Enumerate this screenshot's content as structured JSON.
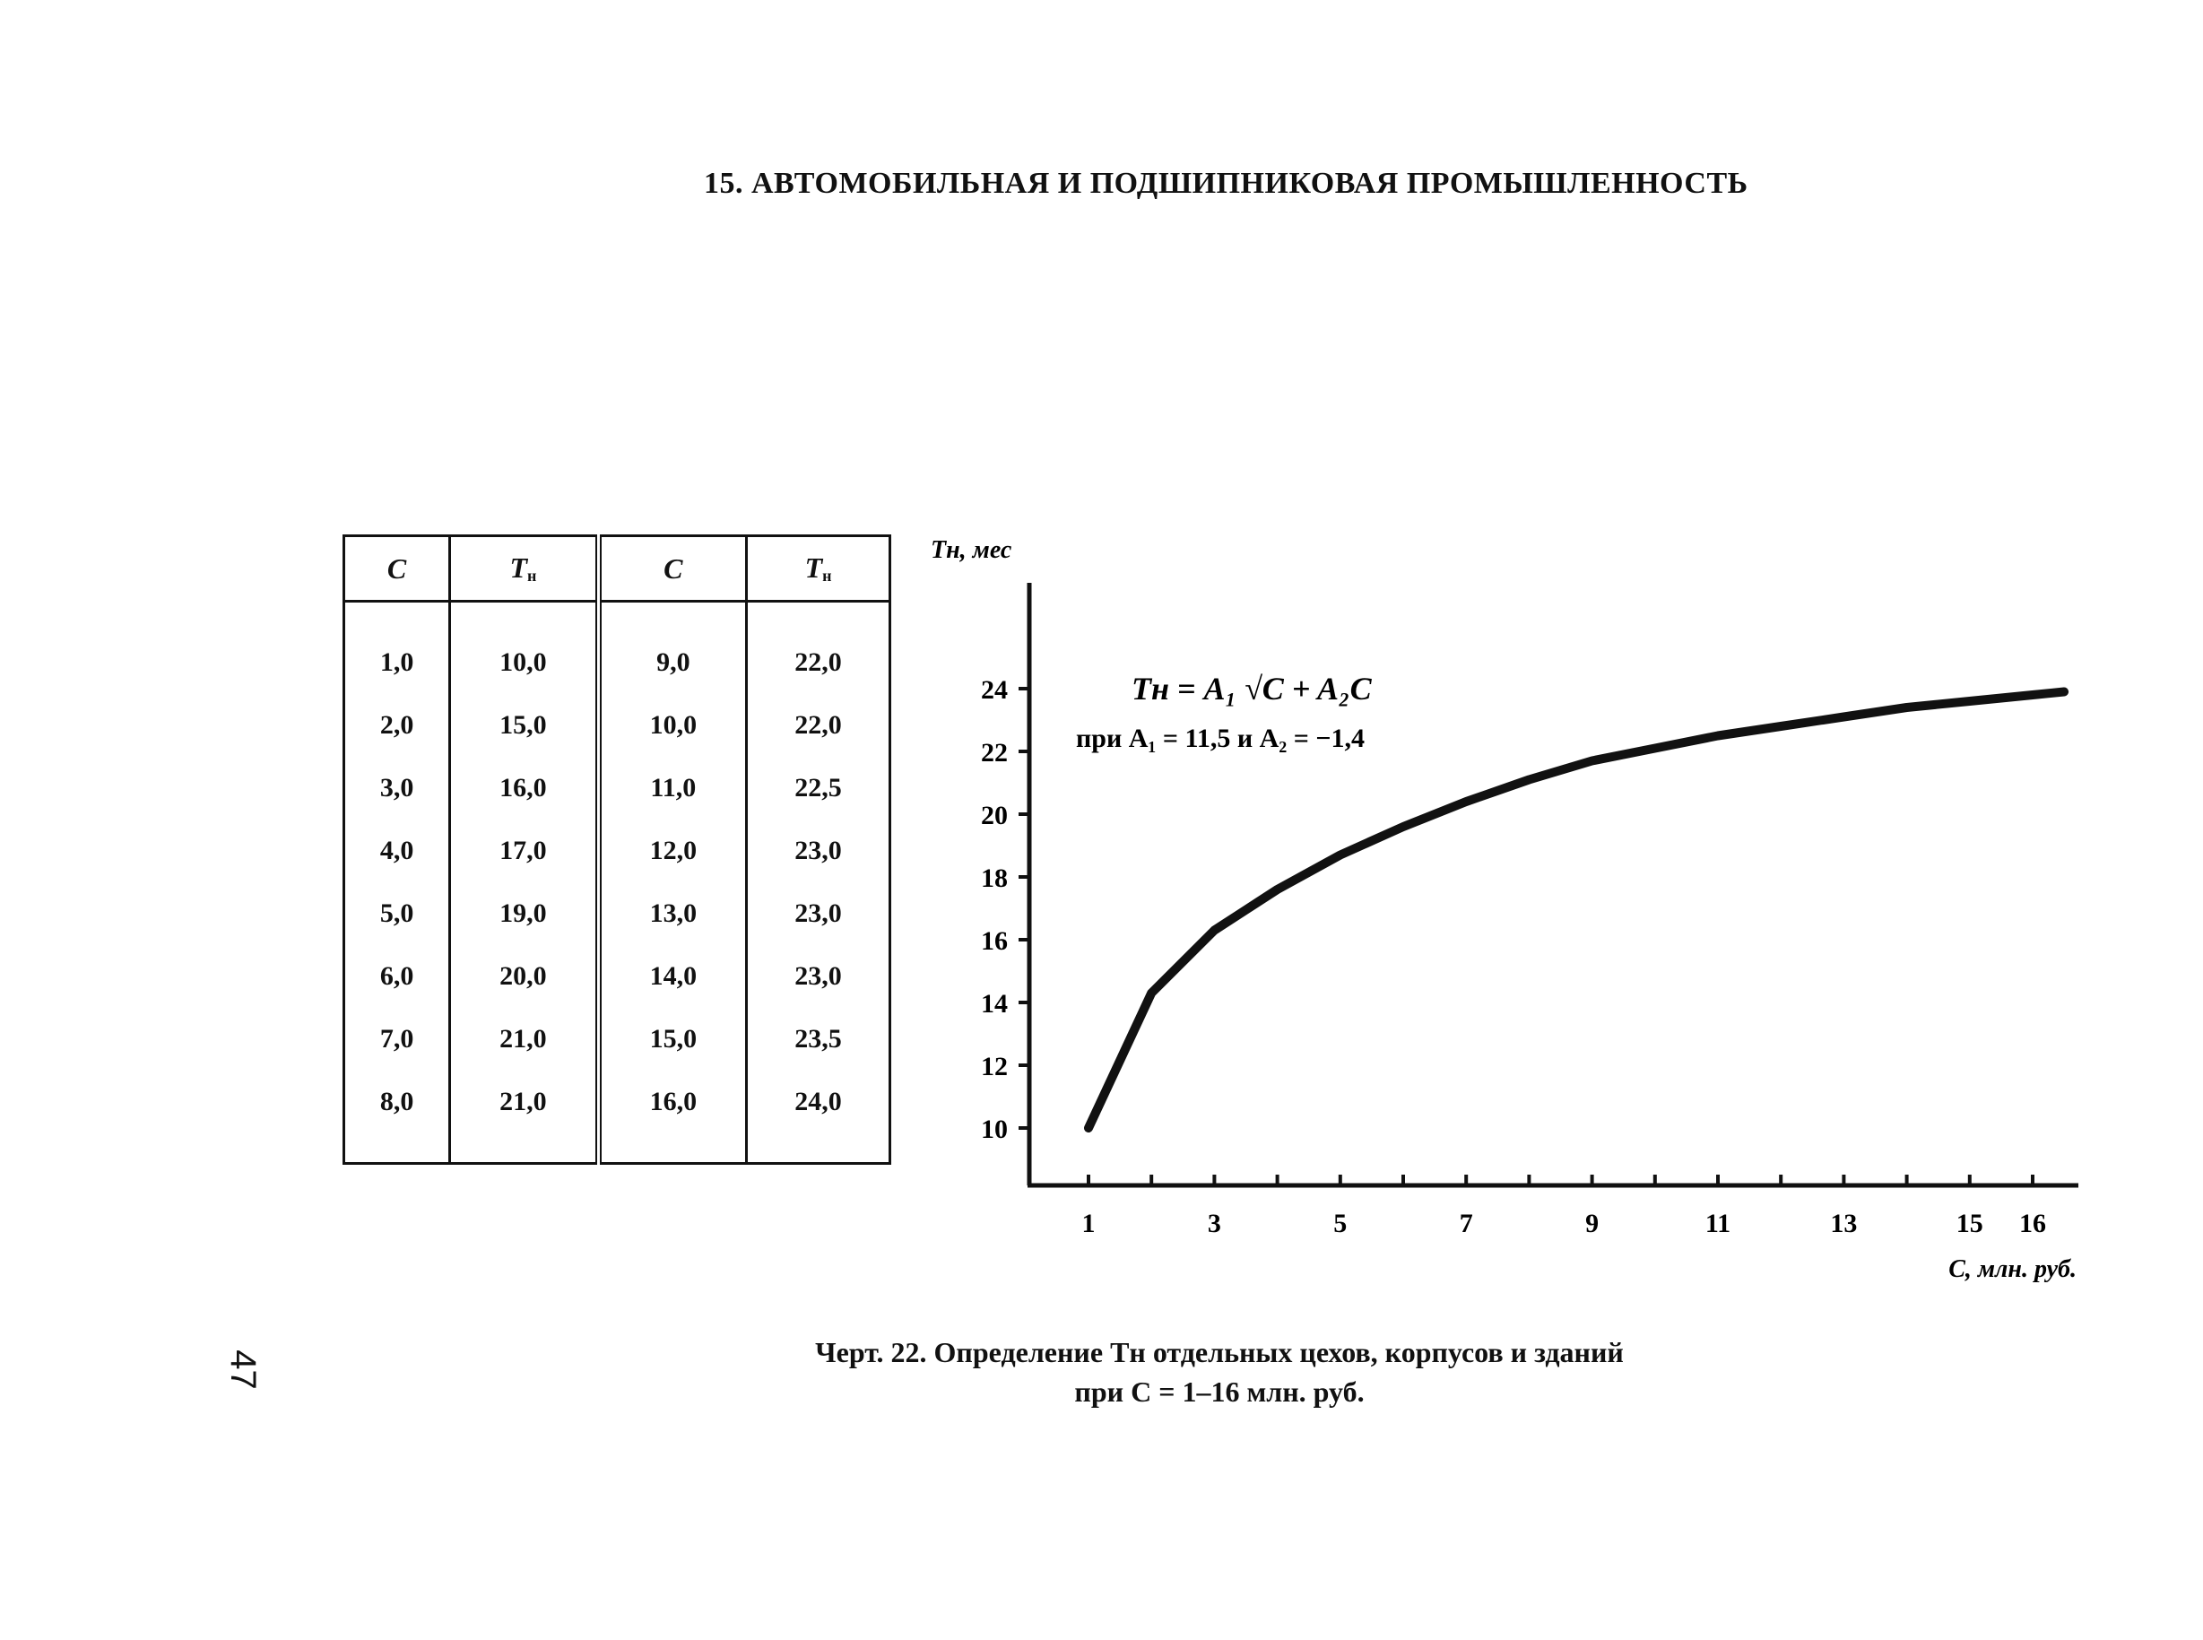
{
  "heading": "15. АВТОМОБИЛЬНАЯ И ПОДШИПНИКОВАЯ ПРОМЫШЛЕННОСТЬ",
  "page_number": "47",
  "table": {
    "headers": [
      "C",
      "T",
      "C",
      "T"
    ],
    "header_sub": "н",
    "rows": [
      [
        "1,0",
        "10,0",
        "9,0",
        "22,0"
      ],
      [
        "2,0",
        "15,0",
        "10,0",
        "22,0"
      ],
      [
        "3,0",
        "16,0",
        "11,0",
        "22,5"
      ],
      [
        "4,0",
        "17,0",
        "12,0",
        "23,0"
      ],
      [
        "5,0",
        "19,0",
        "13,0",
        "23,0"
      ],
      [
        "6,0",
        "20,0",
        "14,0",
        "23,0"
      ],
      [
        "7,0",
        "21,0",
        "15,0",
        "23,5"
      ],
      [
        "8,0",
        "21,0",
        "16,0",
        "24,0"
      ]
    ]
  },
  "formula": {
    "line1": "Tн = A₁ √C + A₂C",
    "line2": "при A₁ = 11,5 и A₂ = −1,4"
  },
  "caption": {
    "line1": "Черт. 22. Определение Tн отдельных цехов, корпусов и зданий",
    "line2": "при C = 1–16 млн. руб."
  },
  "chart_data": {
    "type": "line",
    "ylabel": "Tн, мес",
    "xlabel": "C, млн. руб.",
    "x_ticks": [
      1,
      3,
      5,
      7,
      9,
      11,
      13,
      15,
      16
    ],
    "y_ticks": [
      10,
      12,
      14,
      16,
      18,
      20,
      22,
      24
    ],
    "xlim": [
      0,
      16.6
    ],
    "ylim": [
      8.2,
      27.5
    ],
    "formula_A1": 11.5,
    "formula_A2": -1.4,
    "series": [
      {
        "x": [
          1,
          2,
          3,
          4,
          5,
          6,
          7,
          8,
          9,
          10,
          11,
          12,
          13,
          14,
          15,
          16,
          16.5
        ],
        "values": [
          10.0,
          14.3,
          16.3,
          17.6,
          18.7,
          19.6,
          20.4,
          21.1,
          21.7,
          22.1,
          22.5,
          22.8,
          23.1,
          23.4,
          23.6,
          23.8,
          23.9
        ]
      }
    ]
  }
}
